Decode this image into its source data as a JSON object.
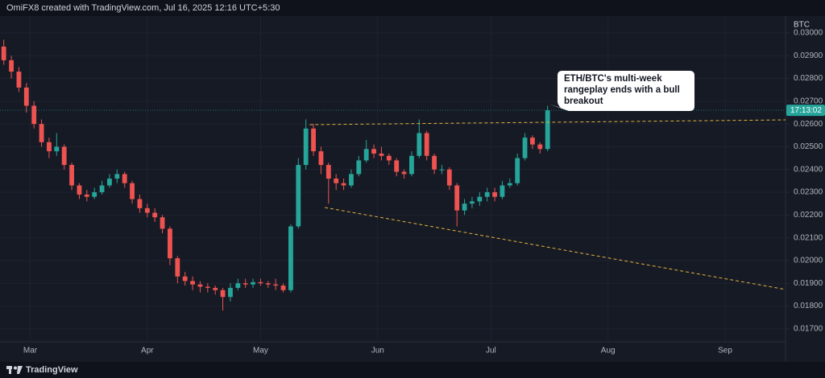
{
  "header": {
    "text": "OmiFX8 created with TradingView.com, Jul 16, 2025 12:16 UTC+5:30"
  },
  "footer": {
    "text": "TradingView"
  },
  "chart_data": {
    "type": "candlestick",
    "currency": "BTC",
    "x": [
      -7,
      -5,
      -3,
      -1,
      1,
      3,
      5,
      7,
      9,
      11,
      13,
      15,
      17,
      19,
      21,
      23,
      25,
      27,
      29,
      31,
      33,
      35,
      37,
      39,
      41,
      43,
      45,
      47,
      49,
      51,
      53,
      55,
      57,
      59,
      61,
      63,
      65,
      67,
      69,
      71,
      73,
      75,
      77,
      79,
      81,
      83,
      85,
      87,
      89,
      91,
      93,
      95,
      97,
      99,
      101,
      103,
      105,
      107,
      109,
      111,
      113,
      115,
      117,
      119,
      121,
      123,
      125,
      127,
      129,
      131,
      133,
      135,
      137
    ],
    "open": [
      0.0294,
      0.0288,
      0.0283,
      0.0276,
      0.0268,
      0.026,
      0.0252,
      0.0248,
      0.025,
      0.0242,
      0.0233,
      0.0229,
      0.0228,
      0.023,
      0.0233,
      0.0236,
      0.0238,
      0.0234,
      0.0227,
      0.0223,
      0.0221,
      0.0219,
      0.0214,
      0.0201,
      0.0193,
      0.0191,
      0.01895,
      0.01885,
      0.0188,
      0.0187,
      0.0184,
      0.0188,
      0.019,
      0.01895,
      0.01905,
      0.019,
      0.01895,
      0.0189,
      0.0187,
      0.0215,
      0.0242,
      0.0258,
      0.0248,
      0.0242,
      0.0236,
      0.0234,
      0.0233,
      0.0238,
      0.0244,
      0.0249,
      0.0247,
      0.0246,
      0.0244,
      0.0239,
      0.0238,
      0.0246,
      0.0256,
      0.0246,
      0.024,
      0.024,
      0.0233,
      0.0222,
      0.0225,
      0.0226,
      0.0228,
      0.023,
      0.0228,
      0.0233,
      0.0234,
      0.0245,
      0.0254,
      0.0251,
      0.0249
    ],
    "high": [
      0.0297,
      0.029,
      0.0285,
      0.0278,
      0.027,
      0.0262,
      0.0254,
      0.0256,
      0.0251,
      0.0243,
      0.0234,
      0.0231,
      0.0232,
      0.0235,
      0.0238,
      0.024,
      0.0239,
      0.0235,
      0.0229,
      0.0225,
      0.0223,
      0.022,
      0.0215,
      0.0202,
      0.0195,
      0.0193,
      0.0191,
      0.019,
      0.0189,
      0.0188,
      0.019,
      0.0192,
      0.0192,
      0.0192,
      0.0192,
      0.0191,
      0.0192,
      0.019,
      0.0216,
      0.0245,
      0.0262,
      0.026,
      0.025,
      0.0243,
      0.0238,
      0.0236,
      0.024,
      0.0246,
      0.0253,
      0.0251,
      0.025,
      0.0247,
      0.0245,
      0.024,
      0.0248,
      0.0262,
      0.0257,
      0.0247,
      0.0242,
      0.0241,
      0.0234,
      0.0227,
      0.0228,
      0.023,
      0.0232,
      0.0232,
      0.0235,
      0.0236,
      0.0247,
      0.0256,
      0.0255,
      0.0252,
      0.0268
    ],
    "low": [
      0.0286,
      0.028,
      0.0274,
      0.0265,
      0.0258,
      0.025,
      0.0245,
      0.0246,
      0.024,
      0.0231,
      0.0227,
      0.0226,
      0.0227,
      0.0229,
      0.0232,
      0.0234,
      0.0232,
      0.0225,
      0.0221,
      0.0219,
      0.0217,
      0.0212,
      0.0198,
      0.019,
      0.0189,
      0.0187,
      0.0186,
      0.0186,
      0.0185,
      0.0178,
      0.0182,
      0.0187,
      0.0188,
      0.0188,
      0.0189,
      0.0188,
      0.0187,
      0.0186,
      0.0186,
      0.0214,
      0.024,
      0.0246,
      0.0238,
      0.0225,
      0.0231,
      0.0231,
      0.0232,
      0.0237,
      0.0243,
      0.0245,
      0.0244,
      0.0242,
      0.0237,
      0.0236,
      0.0237,
      0.0245,
      0.0244,
      0.0238,
      0.0238,
      0.0231,
      0.0215,
      0.022,
      0.0223,
      0.0224,
      0.0226,
      0.0226,
      0.0227,
      0.0232,
      0.0233,
      0.0244,
      0.0249,
      0.0247,
      0.0248
    ],
    "close": [
      0.0288,
      0.0283,
      0.0276,
      0.0268,
      0.026,
      0.0252,
      0.0248,
      0.025,
      0.0242,
      0.0233,
      0.0229,
      0.0228,
      0.023,
      0.0233,
      0.0236,
      0.0238,
      0.0234,
      0.0227,
      0.0223,
      0.0221,
      0.0219,
      0.0214,
      0.0201,
      0.0193,
      0.0191,
      0.01895,
      0.01885,
      0.0188,
      0.0187,
      0.0184,
      0.0188,
      0.019,
      0.01895,
      0.01905,
      0.019,
      0.01895,
      0.0189,
      0.0187,
      0.0215,
      0.0242,
      0.0258,
      0.0248,
      0.0242,
      0.0236,
      0.0234,
      0.0233,
      0.0238,
      0.0244,
      0.0249,
      0.0247,
      0.0246,
      0.0244,
      0.0239,
      0.0238,
      0.0246,
      0.0256,
      0.0246,
      0.024,
      0.024,
      0.0233,
      0.0222,
      0.0225,
      0.0226,
      0.0228,
      0.023,
      0.0228,
      0.0233,
      0.0234,
      0.0245,
      0.0254,
      0.0251,
      0.0249,
      0.0266
    ],
    "up_color": "#26a69a",
    "down_color": "#ef5350",
    "xlim": [
      -8,
      200
    ],
    "xticks": [
      {
        "value": 0,
        "label": "Mar"
      },
      {
        "value": 31,
        "label": "Apr"
      },
      {
        "value": 61,
        "label": "May"
      },
      {
        "value": 92,
        "label": "Jun"
      },
      {
        "value": 122,
        "label": "Jul"
      },
      {
        "value": 153,
        "label": "Aug"
      },
      {
        "value": 184,
        "label": "Sep"
      }
    ],
    "ylim": [
      0.01643,
      0.03074
    ],
    "yticks": [
      {
        "value": 0.017,
        "label": "0.01700"
      },
      {
        "value": 0.018,
        "label": "0.01800"
      },
      {
        "value": 0.019,
        "label": "0.01900"
      },
      {
        "value": 0.02,
        "label": "0.02000"
      },
      {
        "value": 0.021,
        "label": "0.02100"
      },
      {
        "value": 0.022,
        "label": "0.02200"
      },
      {
        "value": 0.023,
        "label": "0.02300"
      },
      {
        "value": 0.024,
        "label": "0.02400"
      },
      {
        "value": 0.025,
        "label": "0.02500"
      },
      {
        "value": 0.026,
        "label": "0.02600"
      },
      {
        "value": 0.027,
        "label": "0.02700"
      },
      {
        "value": 0.028,
        "label": "0.02800"
      },
      {
        "value": 0.029,
        "label": "0.02900"
      },
      {
        "value": 0.03,
        "label": "0.03000"
      }
    ],
    "grid": true,
    "trendlines": [
      {
        "x": [
          74,
          200
        ],
        "y": [
          0.02597,
          0.02618
        ],
        "color": "#e0b23c"
      },
      {
        "x": [
          78,
          200
        ],
        "y": [
          0.02233,
          0.01873
        ],
        "color": "#e0b23c"
      }
    ],
    "price_label": "17:13:02",
    "annotation": [
      "ETH/BTC's multi-week",
      "rangeplay ends with a bull",
      "breakout"
    ]
  }
}
